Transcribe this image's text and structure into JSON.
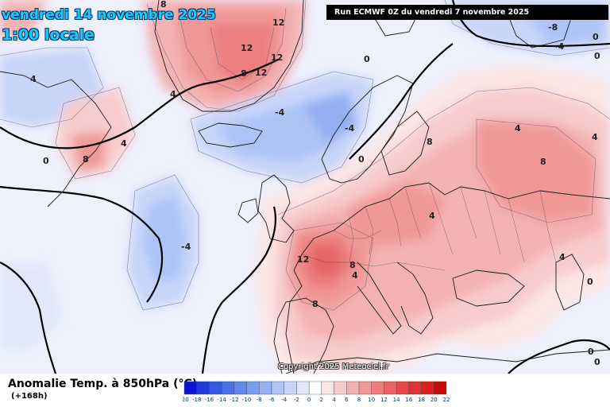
{
  "header": {
    "date": "vendredi 14 novembre 2025",
    "time": "1:00 locale"
  },
  "run_info": "Run ECMWF 0Z du vendredi 7 novembre 2025",
  "copyright": "Copyright 2025 Meteociel.fr",
  "variable_label": "Anomalie Temp. à 850hPa (°C)",
  "lead_time": "(+168h)",
  "colorbar": {
    "ticks": [
      "-20",
      "-18",
      "-16",
      "-14",
      "-12",
      "-10",
      "-8",
      "-6",
      "-4",
      "-2",
      "0",
      "2",
      "4",
      "6",
      "8",
      "10",
      "12",
      "14",
      "16",
      "18",
      "20",
      "22"
    ],
    "colors": [
      "#0a14d2",
      "#1e3cdc",
      "#3258e4",
      "#4a72ea",
      "#6288ee",
      "#7a9cf0",
      "#92b0f2",
      "#aec4f6",
      "#c8d6fa",
      "#e2e8fc",
      "#ffffff",
      "#fce6e6",
      "#f8cccc",
      "#f4b2b2",
      "#f09898",
      "#ec7e7e",
      "#e86464",
      "#e44a4a",
      "#e03232",
      "#dc1e1e",
      "#c80a0a"
    ]
  },
  "contour_labels": [
    {
      "text": "8"
    },
    {
      "text": "12"
    },
    {
      "text": "12"
    },
    {
      "text": "12"
    },
    {
      "text": "8"
    },
    {
      "text": "12"
    },
    {
      "text": "4"
    },
    {
      "text": "4"
    },
    {
      "text": "4"
    },
    {
      "text": "8"
    },
    {
      "text": "0"
    },
    {
      "text": "0"
    },
    {
      "text": "-4"
    },
    {
      "text": "-4"
    },
    {
      "text": "-4"
    },
    {
      "text": "0"
    },
    {
      "text": "-8"
    },
    {
      "text": "0"
    },
    {
      "text": "-4"
    },
    {
      "text": "0"
    },
    {
      "text": "4"
    },
    {
      "text": "8"
    },
    {
      "text": "8"
    },
    {
      "text": "4"
    },
    {
      "text": "4"
    },
    {
      "text": "12"
    },
    {
      "text": "8"
    },
    {
      "text": "8"
    },
    {
      "text": "4"
    },
    {
      "text": "0"
    },
    {
      "text": "0"
    },
    {
      "text": "0"
    },
    {
      "text": "4"
    }
  ],
  "colors": {
    "title": "#1ec8ff",
    "warm": "#ec7e7e",
    "cold": "#92b0f2"
  }
}
